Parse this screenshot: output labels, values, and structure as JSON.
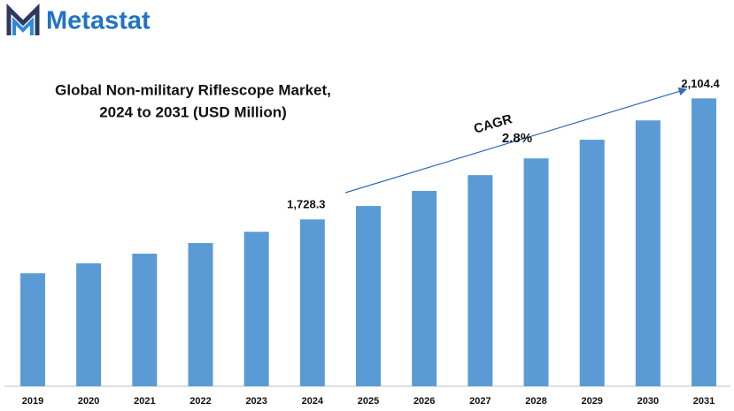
{
  "header": {
    "logo": "Metastat"
  },
  "chart_data": {
    "type": "bar",
    "title": [
      "Global Non-military Riflescope Market,",
      "2024 to 2031 (USD Million)"
    ],
    "categories": [
      "2019",
      "2020",
      "2021",
      "2022",
      "2023",
      "2024",
      "2025",
      "2026",
      "2027",
      "2028",
      "2029",
      "2030",
      "2031"
    ],
    "values": [
      1561,
      1592,
      1622,
      1655,
      1690,
      1728.3,
      1770,
      1817,
      1866,
      1918,
      1976,
      2036,
      2104.4
    ],
    "value_labels": [
      null,
      null,
      null,
      null,
      null,
      "1,728.3",
      null,
      null,
      null,
      null,
      null,
      null,
      "2,104.4"
    ],
    "color": "#5b9bd5",
    "ylim": [
      1210,
      2130
    ],
    "annotations": [
      "CAGR",
      "2.8%"
    ]
  }
}
